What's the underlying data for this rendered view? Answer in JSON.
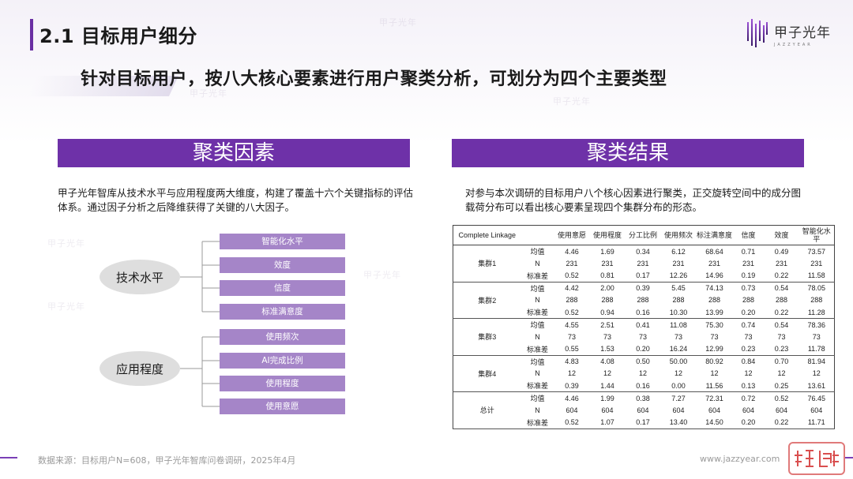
{
  "header": {
    "title": "2.1 目标用户细分",
    "headline": "针对目标用户，按八大核心要素进行用户聚类分析，可划分为四个主要类型"
  },
  "logo": {
    "name_cn": "甲子光年",
    "name_en": "JAZZYEAR",
    "icon": "jazzyear-logo-icon"
  },
  "left_panel": {
    "title": "聚类因素",
    "description": "甲子光年智库从技术水平与应用程度两大维度，构建了覆盖十六个关键指标的评估体系。通过因子分析之后降维获得了关键的八大因子。",
    "groups": [
      {
        "label": "技术水平",
        "factors": [
          "智能化水平",
          "效度",
          "信度",
          "标准满意度"
        ]
      },
      {
        "label": "应用程度",
        "factors": [
          "使用频次",
          "AI完成比例",
          "使用程度",
          "使用意愿"
        ]
      }
    ]
  },
  "right_panel": {
    "title": "聚类结果",
    "description": "对参与本次调研的目标用户八个核心因素进行聚类，正交旋转空间中的成分图载荷分布可以看出核心要素呈现四个集群分布的形态。",
    "table": {
      "headers": [
        "Complete Linkage",
        "",
        "使用意愿",
        "使用程度",
        "分工比例",
        "使用频次",
        "标注满意度",
        "信度",
        "效度",
        "智能化水平"
      ],
      "clusters": [
        {
          "name": "集群1",
          "rows": [
            {
              "stat": "均值",
              "values": [
                "4.46",
                "1.69",
                "0.34",
                "6.12",
                "68.64",
                "0.71",
                "0.49",
                "73.57"
              ]
            },
            {
              "stat": "N",
              "values": [
                "231",
                "231",
                "231",
                "231",
                "231",
                "231",
                "231",
                "231"
              ]
            },
            {
              "stat": "标准差",
              "values": [
                "0.52",
                "0.81",
                "0.17",
                "12.26",
                "14.96",
                "0.19",
                "0.22",
                "11.58"
              ]
            }
          ]
        },
        {
          "name": "集群2",
          "rows": [
            {
              "stat": "均值",
              "values": [
                "4.42",
                "2.00",
                "0.39",
                "5.45",
                "74.13",
                "0.73",
                "0.54",
                "78.05"
              ]
            },
            {
              "stat": "N",
              "values": [
                "288",
                "288",
                "288",
                "288",
                "288",
                "288",
                "288",
                "288"
              ]
            },
            {
              "stat": "标准差",
              "values": [
                "0.52",
                "0.94",
                "0.16",
                "10.30",
                "13.99",
                "0.20",
                "0.22",
                "11.28"
              ]
            }
          ]
        },
        {
          "name": "集群3",
          "rows": [
            {
              "stat": "均值",
              "values": [
                "4.55",
                "2.51",
                "0.41",
                "11.08",
                "75.30",
                "0.74",
                "0.54",
                "78.36"
              ]
            },
            {
              "stat": "N",
              "values": [
                "73",
                "73",
                "73",
                "73",
                "73",
                "73",
                "73",
                "73"
              ]
            },
            {
              "stat": "标准差",
              "values": [
                "0.55",
                "1.53",
                "0.20",
                "16.24",
                "12.99",
                "0.23",
                "0.23",
                "11.78"
              ]
            }
          ]
        },
        {
          "name": "集群4",
          "rows": [
            {
              "stat": "均值",
              "values": [
                "4.83",
                "4.08",
                "0.50",
                "50.00",
                "80.92",
                "0.84",
                "0.70",
                "81.94"
              ]
            },
            {
              "stat": "N",
              "values": [
                "12",
                "12",
                "12",
                "12",
                "12",
                "12",
                "12",
                "12"
              ]
            },
            {
              "stat": "标准差",
              "values": [
                "0.39",
                "1.44",
                "0.16",
                "0.00",
                "11.56",
                "0.13",
                "0.25",
                "13.61"
              ]
            }
          ]
        },
        {
          "name": "总计",
          "rows": [
            {
              "stat": "均值",
              "values": [
                "4.46",
                "1.99",
                "0.38",
                "7.27",
                "72.31",
                "0.72",
                "0.52",
                "76.45"
              ]
            },
            {
              "stat": "N",
              "values": [
                "604",
                "604",
                "604",
                "604",
                "604",
                "604",
                "604",
                "604"
              ]
            },
            {
              "stat": "标准差",
              "values": [
                "0.52",
                "1.07",
                "0.17",
                "13.40",
                "14.50",
                "0.20",
                "0.22",
                "11.71"
              ]
            }
          ]
        }
      ]
    }
  },
  "footer": {
    "source": "数据来源：目标用户N=608，甲子光年智库问卷调研，2025年4月",
    "website": "www.jazzyear.com"
  },
  "colors": {
    "accent": "#6e31a8",
    "factor_box": "#a585c8",
    "oval": "#dedede"
  }
}
